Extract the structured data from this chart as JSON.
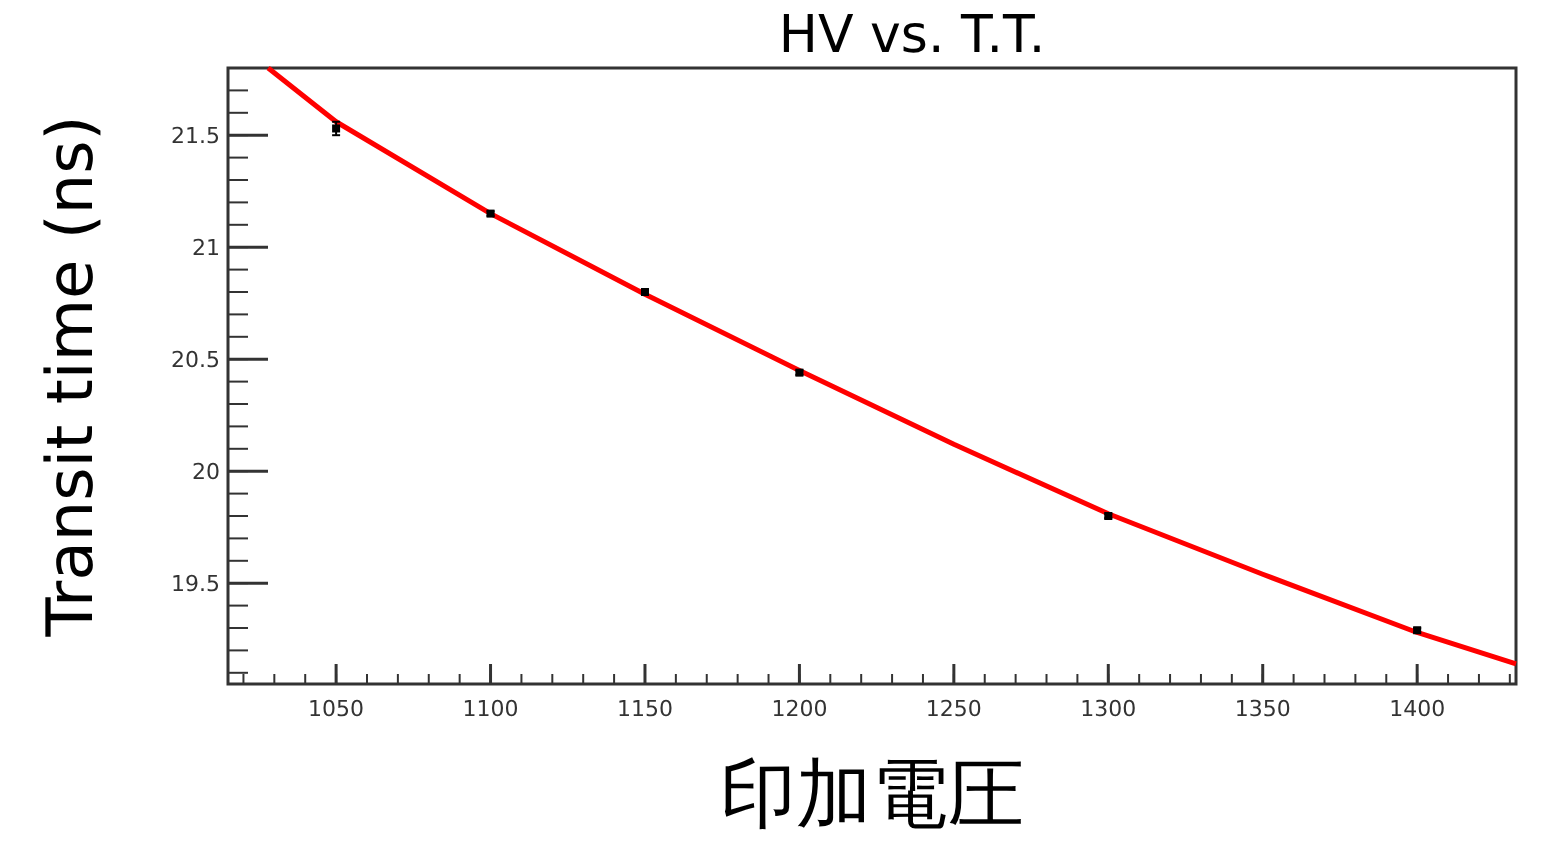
{
  "chart_data": {
    "type": "scatter",
    "title": "HV vs. T.T.",
    "xlabel": "印加電圧",
    "ylabel": "Transit time (ns)",
    "xlim": [
      1015,
      1432
    ],
    "ylim": [
      19.05,
      21.8
    ],
    "xticks": [
      1050,
      1100,
      1150,
      1200,
      1250,
      1300,
      1350,
      1400
    ],
    "yticks": [
      19.5,
      20,
      20.5,
      21,
      21.5
    ],
    "grid": false,
    "series": [
      {
        "type": "scatter",
        "color": "#000000",
        "marker": "square",
        "x": [
          1050,
          1100,
          1150,
          1200,
          1300,
          1400
        ],
        "values": [
          21.53,
          21.15,
          20.8,
          20.44,
          19.8,
          19.29
        ],
        "errors": [
          0.03,
          0.01,
          0.01,
          0.01,
          0.01,
          0.01
        ]
      },
      {
        "type": "line",
        "color": "#ff0000",
        "x": [
          1028,
          1050,
          1100,
          1150,
          1200,
          1250,
          1300,
          1350,
          1400,
          1432
        ],
        "values": [
          21.8,
          21.56,
          21.15,
          20.79,
          20.45,
          20.12,
          19.81,
          19.54,
          19.28,
          19.14
        ]
      }
    ]
  }
}
